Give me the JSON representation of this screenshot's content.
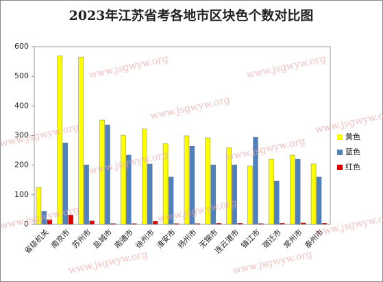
{
  "chart_data": {
    "type": "bar",
    "title": "2023年江苏省考各地市区块色个数对比图",
    "categories": [
      "省级机关",
      "南京市",
      "苏州市",
      "盐城市",
      "南通市",
      "徐州市",
      "淮安市",
      "扬州市",
      "无锡市",
      "连云港市",
      "镇江市",
      "宿迁市",
      "常州市",
      "泰州市"
    ],
    "series": [
      {
        "name": "黄色",
        "color": "#ffff00",
        "values": [
          125,
          569,
          565,
          352,
          301,
          322,
          273,
          299,
          292,
          259,
          197,
          220,
          234,
          204
        ]
      },
      {
        "name": "蓝色",
        "color": "#4f81bd",
        "values": [
          44,
          275,
          201,
          336,
          234,
          204,
          160,
          264,
          201,
          201,
          294,
          146,
          220,
          160
        ]
      },
      {
        "name": "红色",
        "color": "#e00000",
        "values": [
          16,
          32,
          12,
          3,
          3,
          11,
          3,
          3,
          4,
          4,
          3,
          4,
          5,
          4
        ]
      }
    ],
    "ylim": [
      0,
      600
    ],
    "yticks": [
      0,
      100,
      200,
      300,
      400,
      500,
      600
    ],
    "legend": "right",
    "watermark": "www.jsgwyw.org"
  }
}
